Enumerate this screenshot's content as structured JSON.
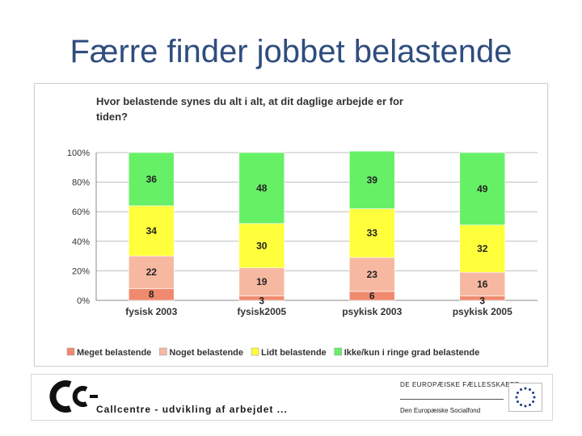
{
  "slide": {
    "title": "Færre finder jobbet belastende"
  },
  "chart_data": {
    "type": "stacked-bar",
    "title_line1": "Hvor belastende synes du alt i alt, at dit daglige arbejde er for",
    "title_line2": "tiden?",
    "categories": [
      "fysisk 2003",
      "fysisk2005",
      "psykisk 2003",
      "psykisk 2005"
    ],
    "y_ticks": [
      "0%",
      "20%",
      "40%",
      "60%",
      "80%",
      "100%"
    ],
    "ylim": [
      0,
      100
    ],
    "stack_mode": "percent",
    "legend_position": "bottom",
    "series": [
      {
        "name": "Meget belastende",
        "color": "#f08a6e",
        "values": [
          8,
          3,
          6,
          3
        ]
      },
      {
        "name": "Noget belastende",
        "color": "#f7b8a2",
        "values": [
          22,
          19,
          23,
          16
        ]
      },
      {
        "name": "Lidt belastende",
        "color": "#ffff3c",
        "values": [
          34,
          30,
          33,
          32
        ]
      },
      {
        "name": "Ikke/kun i ringe grad belastende",
        "color": "#66f066",
        "values": [
          36,
          48,
          39,
          49
        ]
      }
    ]
  },
  "footer": {
    "tagline": "Callcentre - udvikling af arbejdet ...",
    "eu_line1": "DE EUROPÆISKE FÆLLESSKABER",
    "eu_line2": "Den Europæiske Socialfond",
    "flag_color": "#1e3a8a",
    "star_color": "#f5c400",
    "flag_icon": "eu-flag-icon",
    "logo_icon": "cc-logo-icon"
  }
}
